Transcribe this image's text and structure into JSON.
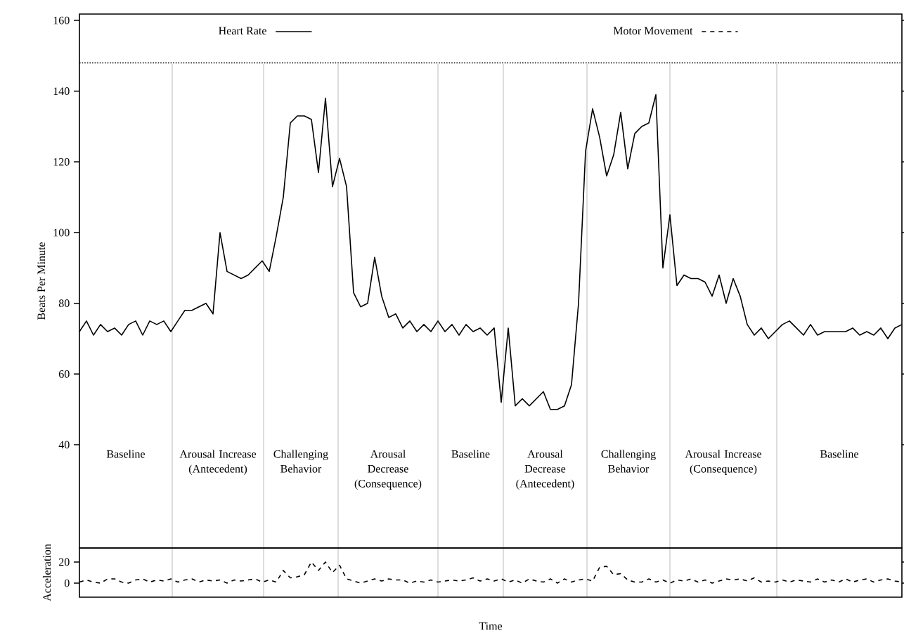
{
  "chart_data": [
    {
      "type": "line",
      "ylabel": "Beats Per Minute",
      "ylim": [
        10.8,
        161.8
      ],
      "yticks": [
        40,
        60,
        80,
        100,
        120,
        140,
        160
      ],
      "tick_labels": "y",
      "legend": "top",
      "ref_lines": [
        {
          "axis": "y",
          "value": 148,
          "line_style": "dotted"
        }
      ],
      "categories": [
        null,
        null,
        null,
        null,
        null,
        null,
        null,
        null,
        null,
        null,
        null,
        null,
        null,
        null,
        null,
        null,
        null,
        null,
        null,
        null,
        null,
        null,
        null,
        null,
        null,
        null,
        null,
        null,
        null,
        null,
        null,
        null,
        null,
        null,
        null,
        null,
        null,
        null,
        null,
        null,
        null,
        null,
        null,
        null,
        null,
        null,
        null,
        null,
        null,
        null,
        null,
        null,
        null,
        null,
        null,
        null,
        null,
        null,
        null,
        null,
        null,
        null,
        null,
        null,
        null,
        null,
        null,
        null,
        null,
        null,
        null,
        null,
        null,
        null,
        null,
        null,
        null,
        null,
        null,
        null,
        null,
        null,
        null,
        null,
        null,
        null,
        null,
        null,
        null,
        null,
        null,
        null,
        null,
        null,
        null,
        null,
        null,
        null,
        null,
        null,
        null,
        null,
        null,
        null,
        null,
        null,
        null,
        null,
        null,
        null,
        null,
        null,
        null,
        null,
        null,
        null,
        null,
        null
      ],
      "annotations": [
        "Baseline",
        "Arousal Increase (Antecedent)",
        "Challenging Behavior",
        "Arousal Decrease (Consequence)",
        "Baseline",
        "Arousal Decrease (Antecedent)",
        "Challenging Behavior",
        "Arousal Increase (Consequence)",
        "Baseline"
      ],
      "series": [
        {
          "name": "Heart Rate",
          "color": "#000000",
          "line_style": "solid",
          "values": [
            72,
            75,
            71,
            74,
            72,
            73,
            71,
            74,
            75,
            71,
            75,
            74,
            75,
            72,
            75,
            78,
            78,
            79,
            80,
            77,
            100,
            89,
            88,
            87,
            88,
            90,
            92,
            89,
            99,
            110,
            131,
            133,
            133,
            132,
            117,
            138,
            113,
            121,
            113,
            83,
            79,
            80,
            93,
            82,
            76,
            77,
            73,
            75,
            72,
            74,
            72,
            75,
            72,
            74,
            71,
            74,
            72,
            73,
            71,
            73,
            52,
            73,
            51,
            53,
            51,
            53,
            55,
            50,
            50,
            51,
            57,
            80,
            123,
            135,
            127,
            116,
            122,
            134,
            118,
            128,
            130,
            131,
            139,
            90,
            105,
            85,
            88,
            87,
            87,
            86,
            82,
            88,
            80,
            87,
            82,
            74,
            71,
            73,
            70,
            72,
            74,
            75,
            73,
            71,
            74,
            71,
            72,
            72,
            72,
            72,
            73,
            71,
            72,
            71,
            73,
            70,
            73,
            74
          ]
        }
      ]
    },
    {
      "type": "line",
      "ylabel": "Acceleration",
      "xlabel": "Time",
      "ylim": [
        -13.3,
        33.3
      ],
      "yticks": [
        0,
        20
      ],
      "tick_labels": "y",
      "legend": "top",
      "categories": [
        null,
        null,
        null,
        null,
        null,
        null,
        null,
        null,
        null,
        null,
        null,
        null,
        null,
        null,
        null,
        null,
        null,
        null,
        null,
        null,
        null,
        null,
        null,
        null,
        null,
        null,
        null,
        null,
        null,
        null,
        null,
        null,
        null,
        null,
        null,
        null,
        null,
        null,
        null,
        null,
        null,
        null,
        null,
        null,
        null,
        null,
        null,
        null,
        null,
        null,
        null,
        null,
        null,
        null,
        null,
        null,
        null,
        null,
        null,
        null,
        null,
        null,
        null,
        null,
        null,
        null,
        null,
        null,
        null,
        null,
        null,
        null,
        null,
        null,
        null,
        null,
        null,
        null,
        null,
        null,
        null,
        null,
        null,
        null,
        null,
        null,
        null,
        null,
        null,
        null,
        null,
        null,
        null,
        null,
        null,
        null,
        null,
        null,
        null,
        null,
        null,
        null,
        null,
        null,
        null,
        null,
        null,
        null,
        null,
        null,
        null,
        null,
        null,
        null,
        null,
        null,
        null,
        null
      ],
      "series": [
        {
          "name": "Motor Movement",
          "color": "#000000",
          "line_style": "dashed",
          "values": [
            1,
            3,
            1,
            0,
            4,
            4,
            1,
            0,
            3,
            4,
            1,
            3,
            2,
            4,
            1,
            3,
            4,
            1,
            3,
            2,
            3,
            0,
            3,
            2,
            3,
            4,
            1,
            3,
            1,
            12,
            5,
            6,
            8,
            20,
            12,
            20,
            10,
            17,
            4,
            2,
            0,
            2,
            4,
            2,
            4,
            3,
            3,
            0,
            2,
            1,
            3,
            1,
            2,
            3,
            2,
            3,
            5,
            2,
            4,
            2,
            4,
            1,
            3,
            0,
            4,
            2,
            1,
            4,
            0,
            4,
            1,
            3,
            4,
            2,
            15,
            16,
            8,
            9,
            3,
            1,
            1,
            4,
            1,
            3,
            0,
            3,
            2,
            4,
            1,
            3,
            0,
            2,
            4,
            3,
            4,
            2,
            5,
            1,
            2,
            1,
            3,
            1,
            3,
            2,
            1,
            4,
            1,
            3,
            1,
            4,
            1,
            3,
            4,
            1,
            3,
            4,
            2,
            1
          ]
        }
      ]
    }
  ]
}
